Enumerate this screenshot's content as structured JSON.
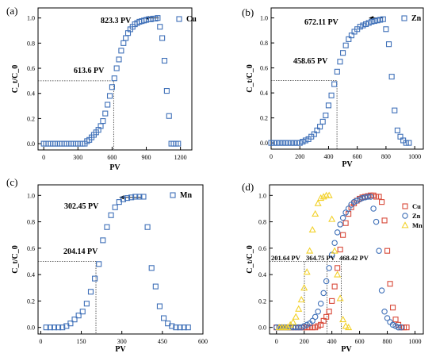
{
  "chart_data": [
    {
      "panel_label": "(a)",
      "type": "scatter",
      "xlabel": "PV",
      "ylabel": "C_t/C_0",
      "xlim": [
        -50,
        1300
      ],
      "ylim": [
        -0.05,
        1.08
      ],
      "xticks": [
        0,
        300,
        600,
        900,
        1200
      ],
      "yticks": [
        0.0,
        0.2,
        0.4,
        0.6,
        0.8,
        1.0
      ],
      "annotations": [
        "823.3 PV",
        "613.6 PV"
      ],
      "guide": {
        "x": 613.6,
        "y": 0.5
      },
      "arrow": {
        "y": 1.0,
        "x_from": 1010,
        "x_to": 880
      },
      "series": [
        {
          "name": "Cu",
          "color": "#3f70b8",
          "marker": "square",
          "x": [
            0,
            20,
            40,
            60,
            80,
            100,
            120,
            140,
            160,
            180,
            200,
            220,
            240,
            260,
            280,
            300,
            320,
            340,
            360,
            380,
            400,
            420,
            440,
            460,
            480,
            500,
            520,
            540,
            560,
            580,
            600,
            620,
            640,
            660,
            680,
            700,
            720,
            740,
            760,
            780,
            800,
            820,
            840,
            860,
            880,
            900,
            920,
            940,
            960,
            980,
            1000,
            1020,
            1040,
            1060,
            1080,
            1100,
            1120,
            1140,
            1160,
            1180
          ],
          "y": [
            0,
            0,
            0,
            0,
            0,
            0,
            0,
            0,
            0,
            0,
            0,
            0,
            0,
            0,
            0,
            0,
            0,
            0,
            0,
            0.02,
            0.03,
            0.05,
            0.07,
            0.09,
            0.11,
            0.14,
            0.18,
            0.24,
            0.31,
            0.38,
            0.45,
            0.52,
            0.6,
            0.67,
            0.74,
            0.8,
            0.84,
            0.88,
            0.91,
            0.93,
            0.95,
            0.96,
            0.97,
            0.975,
            0.98,
            0.985,
            0.99,
            0.99,
            0.995,
            0.995,
            1.0,
            0.93,
            0.84,
            0.66,
            0.42,
            0.22,
            0.0,
            0.0,
            0.0,
            0.0
          ]
        }
      ]
    },
    {
      "panel_label": "(b)",
      "type": "scatter",
      "xlabel": "PV",
      "ylabel": "C_t/C_0",
      "xlim": [
        0,
        1060
      ],
      "ylim": [
        -0.05,
        1.08
      ],
      "xticks": [
        0,
        200,
        400,
        600,
        800,
        1000
      ],
      "yticks": [
        0.0,
        0.2,
        0.4,
        0.6,
        0.8,
        1.0
      ],
      "annotations": [
        "672.11 PV",
        "458.65 PV"
      ],
      "guide": {
        "x": 458.65,
        "y": 0.5
      },
      "arrow": {
        "y": 1.0,
        "x_from": 780,
        "x_to": 680
      },
      "series": [
        {
          "name": "Zn",
          "color": "#3f70b8",
          "marker": "square",
          "x": [
            0,
            20,
            40,
            60,
            80,
            100,
            120,
            140,
            160,
            180,
            200,
            220,
            240,
            260,
            280,
            300,
            320,
            340,
            360,
            380,
            400,
            420,
            440,
            460,
            480,
            500,
            520,
            540,
            560,
            580,
            600,
            620,
            640,
            660,
            680,
            700,
            720,
            740,
            760,
            780,
            800,
            820,
            840,
            860,
            880,
            900,
            920,
            940,
            960
          ],
          "y": [
            0,
            0,
            0,
            0,
            0,
            0,
            0,
            0,
            0,
            0,
            0,
            0.01,
            0.02,
            0.03,
            0.05,
            0.07,
            0.1,
            0.13,
            0.17,
            0.22,
            0.3,
            0.38,
            0.47,
            0.57,
            0.65,
            0.72,
            0.78,
            0.83,
            0.86,
            0.89,
            0.91,
            0.93,
            0.94,
            0.95,
            0.96,
            0.97,
            0.975,
            0.98,
            0.985,
            0.99,
            0.91,
            0.79,
            0.53,
            0.26,
            0.1,
            0.05,
            0.02,
            0.0,
            0.0
          ]
        }
      ]
    },
    {
      "panel_label": "(c)",
      "type": "scatter",
      "xlabel": "PV",
      "ylabel": "C_t/C_0",
      "xlim": [
        -10,
        600
      ],
      "ylim": [
        -0.05,
        1.08
      ],
      "xticks": [
        0,
        150,
        300,
        450,
        600
      ],
      "yticks": [
        0.0,
        0.2,
        0.4,
        0.6,
        0.8,
        1.0
      ],
      "annotations": [
        "302.45 PV",
        "204.14 PV"
      ],
      "guide": {
        "x": 204.14,
        "y": 0.5
      },
      "arrow": {
        "y": 0.985,
        "x_from": 375,
        "x_to": 290
      },
      "series": [
        {
          "name": "Mn",
          "color": "#3f70b8",
          "marker": "square",
          "x": [
            20,
            35,
            50,
            65,
            80,
            95,
            110,
            125,
            140,
            155,
            170,
            185,
            200,
            215,
            230,
            245,
            260,
            275,
            290,
            305,
            320,
            335,
            350,
            365,
            380,
            395,
            410,
            425,
            440,
            455,
            470,
            485,
            500,
            515,
            530,
            545
          ],
          "y": [
            0,
            0,
            0,
            0,
            0,
            0.01,
            0.03,
            0.06,
            0.09,
            0.12,
            0.18,
            0.27,
            0.37,
            0.48,
            0.66,
            0.76,
            0.85,
            0.91,
            0.95,
            0.97,
            0.98,
            0.985,
            0.99,
            0.99,
            0.99,
            0.76,
            0.45,
            0.31,
            0.16,
            0.07,
            0.03,
            0.01,
            0.0,
            0.0,
            0.0,
            0.0
          ]
        }
      ]
    },
    {
      "panel_label": "(d)",
      "type": "scatter",
      "xlabel": "PV",
      "ylabel": "C_t/C_0",
      "xlim": [
        -50,
        1060
      ],
      "ylim": [
        -0.05,
        1.08
      ],
      "xticks": [
        0,
        200,
        400,
        600,
        800,
        1000
      ],
      "yticks": [
        0.0,
        0.2,
        0.4,
        0.6,
        0.8,
        1.0
      ],
      "annotations": [
        "201.64 PV",
        "364.75 PV",
        "468.42 PV"
      ],
      "guides_x": [
        201.64,
        364.75,
        468.42
      ],
      "guide_y": 0.5,
      "series": [
        {
          "name": "Cu",
          "color": "#d84a3a",
          "marker": "square",
          "x": [
            0,
            20,
            40,
            60,
            80,
            100,
            120,
            140,
            160,
            180,
            200,
            220,
            240,
            260,
            280,
            300,
            320,
            340,
            360,
            380,
            400,
            420,
            440,
            460,
            480,
            500,
            520,
            540,
            560,
            580,
            600,
            620,
            640,
            660,
            680,
            700,
            720,
            740,
            760,
            780,
            800,
            820,
            840,
            860,
            880,
            900,
            920,
            940
          ],
          "y": [
            0,
            0,
            0,
            0,
            0,
            0,
            0,
            0,
            0,
            0,
            0,
            0,
            0,
            0,
            0,
            0.01,
            0.02,
            0.05,
            0.08,
            0.12,
            0.2,
            0.31,
            0.45,
            0.59,
            0.7,
            0.79,
            0.86,
            0.91,
            0.94,
            0.96,
            0.975,
            0.985,
            0.99,
            0.995,
            1.0,
            1.0,
            0.99,
            0.99,
            0.95,
            0.81,
            0.58,
            0.33,
            0.15,
            0.06,
            0.02,
            0.0,
            0.0,
            0.0
          ]
        },
        {
          "name": "Zn",
          "color": "#3f70b8",
          "marker": "circle",
          "x": [
            0,
            20,
            40,
            60,
            80,
            100,
            120,
            140,
            160,
            180,
            200,
            220,
            240,
            260,
            280,
            300,
            320,
            340,
            360,
            380,
            400,
            420,
            440,
            460,
            480,
            500,
            520,
            540,
            560,
            580,
            600,
            620,
            640,
            660,
            680,
            700,
            720,
            740,
            760,
            780,
            800,
            820,
            840,
            860,
            880,
            900
          ],
          "y": [
            0,
            0,
            0,
            0,
            0,
            0,
            0,
            0,
            0,
            0,
            0.01,
            0.02,
            0.03,
            0.05,
            0.08,
            0.12,
            0.18,
            0.26,
            0.35,
            0.45,
            0.55,
            0.64,
            0.72,
            0.78,
            0.83,
            0.87,
            0.9,
            0.93,
            0.95,
            0.96,
            0.97,
            0.98,
            0.985,
            0.99,
            0.99,
            0.9,
            0.8,
            0.58,
            0.28,
            0.12,
            0.07,
            0.04,
            0.02,
            0.01,
            0.0,
            0.0
          ]
        },
        {
          "name": "Mn",
          "color": "#f2d12a",
          "marker": "triangle",
          "x": [
            20,
            40,
            60,
            80,
            100,
            120,
            140,
            160,
            180,
            200,
            220,
            240,
            260,
            280,
            300,
            320,
            340,
            360,
            380,
            400,
            420,
            440,
            460,
            480,
            500,
            520
          ],
          "y": [
            0,
            0,
            0,
            0,
            0.02,
            0.04,
            0.08,
            0.14,
            0.21,
            0.3,
            0.42,
            0.58,
            0.74,
            0.86,
            0.94,
            0.98,
            0.99,
            1.0,
            1.0,
            0.82,
            0.58,
            0.4,
            0.22,
            0.06,
            0.01,
            0.0
          ]
        }
      ]
    }
  ]
}
